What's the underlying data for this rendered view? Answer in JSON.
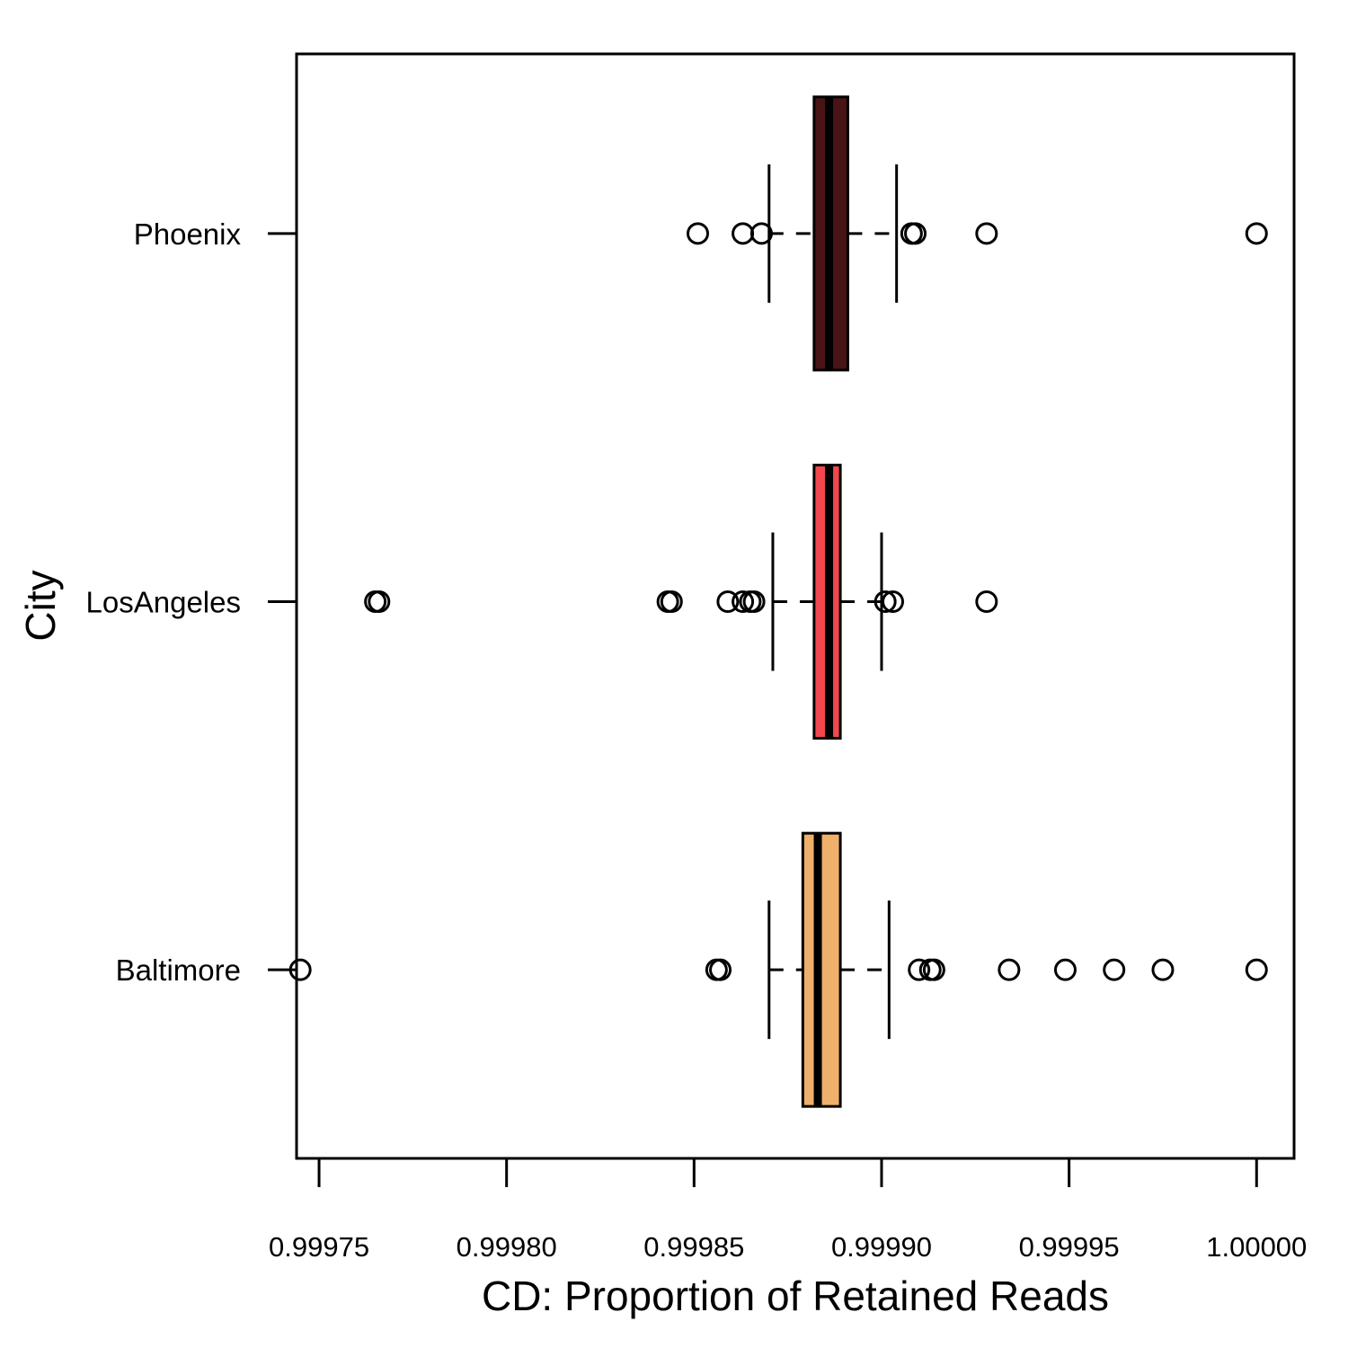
{
  "chart_data": {
    "type": "boxplot",
    "orientation": "horizontal",
    "xlabel": "CD: Proportion of Retained Reads",
    "ylabel": "City",
    "xlim": [
      0.999744,
      1.00001
    ],
    "x_ticks": [
      0.99975,
      0.9998,
      0.99985,
      0.9999,
      0.99995,
      1.0
    ],
    "x_tick_labels": [
      "0.99975",
      "0.99980",
      "0.99985",
      "0.99990",
      "0.99995",
      "1.00000"
    ],
    "grid": false,
    "legend": "none",
    "series": [
      {
        "category": "Phoenix",
        "color": "#4a1416",
        "whisker_low": 0.99987,
        "q1": 0.999882,
        "median": 0.999886,
        "q3": 0.999891,
        "whisker_high": 0.999904,
        "outliers": [
          0.999851,
          0.999863,
          0.999868,
          0.999908,
          0.999909,
          0.999928,
          1.0
        ]
      },
      {
        "category": "LosAngeles",
        "color": "#f2474e",
        "whisker_low": 0.999871,
        "q1": 0.999882,
        "median": 0.999886,
        "q3": 0.999889,
        "whisker_high": 0.9999,
        "outliers": [
          0.999765,
          0.999766,
          0.999843,
          0.999844,
          0.999859,
          0.999863,
          0.999865,
          0.999866,
          0.999901,
          0.999903,
          0.999928
        ]
      },
      {
        "category": "Baltimore",
        "color": "#eeb06a",
        "whisker_low": 0.99987,
        "q1": 0.999879,
        "median": 0.999883,
        "q3": 0.999889,
        "whisker_high": 0.999902,
        "outliers": [
          0.999745,
          0.999856,
          0.999857,
          0.99991,
          0.999913,
          0.999914,
          0.999934,
          0.999949,
          0.999962,
          0.999975,
          1.0
        ]
      }
    ]
  }
}
